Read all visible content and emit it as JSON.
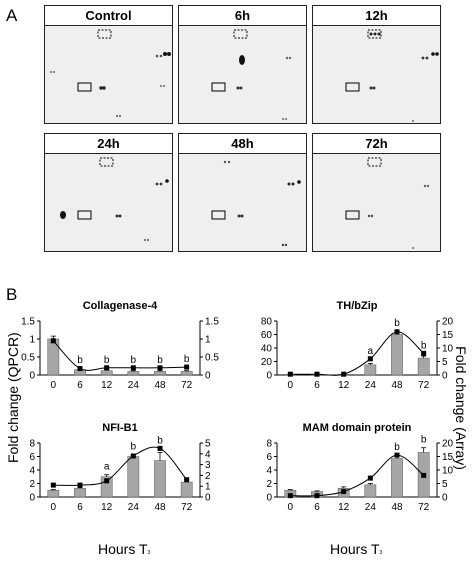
{
  "panel_a": {
    "letter": "A",
    "blots": [
      {
        "label": "Control"
      },
      {
        "label": "6h"
      },
      {
        "label": "12h"
      },
      {
        "label": "24h"
      },
      {
        "label": "48h"
      },
      {
        "label": "72h"
      }
    ]
  },
  "panel_b": {
    "letter": "B",
    "ylabel_left": "Fold change (QPCR)",
    "ylabel_right": "Fold change (Array)",
    "xlabel_left": "Hours T",
    "xlabel_right": "Hours T",
    "xlabel_sub": "3"
  },
  "chart_data": [
    {
      "type": "bar",
      "title": "Collagenase-4",
      "categories": [
        "0",
        "6",
        "12",
        "24",
        "48",
        "72"
      ],
      "values": [
        1.0,
        0.15,
        0.12,
        0.1,
        0.1,
        0.1
      ],
      "errors": [
        0.08,
        0.04,
        0.03,
        0.02,
        0.02,
        0.02
      ],
      "line_values": [
        0.95,
        0.18,
        0.2,
        0.2,
        0.2,
        0.22
      ],
      "annotations": [
        "",
        "b",
        "b",
        "b",
        "b",
        "b"
      ],
      "ylim": [
        0,
        1.5
      ],
      "yticks": [
        "0",
        "0.5",
        "1",
        "1.5"
      ],
      "y2lim": [
        0,
        1.5
      ],
      "y2ticks": [
        "0",
        "0.5",
        "1",
        "1.5"
      ]
    },
    {
      "type": "bar",
      "title": "TH/bZip",
      "categories": [
        "0",
        "6",
        "12",
        "24",
        "48",
        "72"
      ],
      "values": [
        1,
        1,
        1,
        15,
        60,
        25
      ],
      "errors": [
        0.5,
        0.5,
        0.5,
        2,
        5,
        3
      ],
      "line_values": [
        0.3,
        0.3,
        0.3,
        6,
        16,
        8
      ],
      "annotations": [
        "",
        "",
        "",
        "a",
        "b",
        "b"
      ],
      "ylim": [
        0,
        80
      ],
      "yticks": [
        "0",
        "20",
        "40",
        "60",
        "80"
      ],
      "y2lim": [
        0,
        20
      ],
      "y2ticks": [
        "0",
        "5",
        "10",
        "15",
        "20"
      ]
    },
    {
      "type": "bar",
      "title": "NFI-B1",
      "categories": [
        "0",
        "6",
        "12",
        "24",
        "48",
        "72"
      ],
      "values": [
        1,
        1.3,
        3,
        6,
        5.4,
        2.2
      ],
      "errors": [
        0.1,
        0.1,
        0.3,
        0.3,
        1.2,
        0.4
      ],
      "line_values": [
        1.1,
        1.1,
        1.5,
        3.8,
        4.5,
        1.6
      ],
      "annotations": [
        "",
        "",
        "a",
        "b",
        "b",
        ""
      ],
      "ylim": [
        0,
        8
      ],
      "yticks": [
        "0",
        "2",
        "4",
        "6",
        "8"
      ],
      "y2lim": [
        0,
        5
      ],
      "y2ticks": [
        "0",
        "1",
        "2",
        "3",
        "4",
        "5"
      ]
    },
    {
      "type": "bar",
      "title": "MAM domain protein",
      "categories": [
        "0",
        "6",
        "12",
        "24",
        "48",
        "72"
      ],
      "values": [
        1,
        0.8,
        1.3,
        1.8,
        5.7,
        6.6
      ],
      "errors": [
        0.1,
        0.1,
        0.2,
        0.2,
        0.4,
        0.7
      ],
      "line_values": [
        0.5,
        0.5,
        2,
        7,
        15.5,
        8
      ],
      "annotations": [
        "",
        "",
        "",
        "",
        "b",
        "b"
      ],
      "ylim": [
        0,
        8
      ],
      "yticks": [
        "0",
        "2",
        "4",
        "6",
        "8"
      ],
      "y2lim": [
        0,
        20
      ],
      "y2ticks": [
        "0",
        "5",
        "10",
        "15",
        "20"
      ]
    }
  ]
}
